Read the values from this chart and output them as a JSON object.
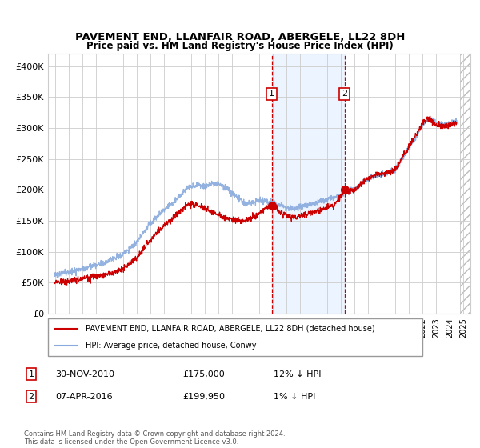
{
  "title": "PAVEMENT END, LLANFAIR ROAD, ABERGELE, LL22 8DH",
  "subtitle": "Price paid vs. HM Land Registry's House Price Index (HPI)",
  "ylabel_ticks": [
    "£0",
    "£50K",
    "£100K",
    "£150K",
    "£200K",
    "£250K",
    "£300K",
    "£350K",
    "£400K"
  ],
  "ytick_values": [
    0,
    50000,
    100000,
    150000,
    200000,
    250000,
    300000,
    350000,
    400000
  ],
  "ylim": [
    0,
    420000
  ],
  "xlim_start": 1994.5,
  "xlim_end": 2025.5,
  "x_ticks": [
    1995,
    1996,
    1997,
    1998,
    1999,
    2000,
    2001,
    2002,
    2003,
    2004,
    2005,
    2006,
    2007,
    2008,
    2009,
    2010,
    2011,
    2012,
    2013,
    2014,
    2015,
    2016,
    2017,
    2018,
    2019,
    2020,
    2021,
    2022,
    2023,
    2024,
    2025
  ],
  "legend_line1": "PAVEMENT END, LLANFAIR ROAD, ABERGELE, LL22 8DH (detached house)",
  "legend_line2": "HPI: Average price, detached house, Conwy",
  "color_price": "#cc0000",
  "color_hpi": "#88aadd",
  "marker1_x": 2010.92,
  "marker1_y": 175000,
  "marker1_label": "1",
  "marker1_date": "30-NOV-2010",
  "marker1_price": "£175,000",
  "marker1_hpi": "12% ↓ HPI",
  "marker2_x": 2016.27,
  "marker2_y": 199950,
  "marker2_label": "2",
  "marker2_date": "07-APR-2016",
  "marker2_price": "£199,950",
  "marker2_hpi": "1% ↓ HPI",
  "footnote": "Contains HM Land Registry data © Crown copyright and database right 2024.\nThis data is licensed under the Open Government Licence v3.0.",
  "shaded_region_start": 2010.92,
  "shaded_region_end": 2016.27,
  "hatch_region_start": 2024.75,
  "hatch_region_end": 2025.5
}
